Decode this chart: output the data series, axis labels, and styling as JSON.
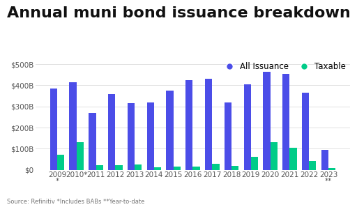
{
  "title": "Annual muni bond issuance breakdown",
  "years": [
    "2009\n*",
    "2010*",
    "2011",
    "2012",
    "2013",
    "2014",
    "2015",
    "2016",
    "2017",
    "2018",
    "2019",
    "2020",
    "2021",
    "2022",
    "2023\n**"
  ],
  "all_issuance": [
    385,
    415,
    270,
    360,
    315,
    320,
    375,
    425,
    430,
    320,
    405,
    465,
    455,
    365,
    95
  ],
  "taxable": [
    70,
    130,
    20,
    20,
    25,
    12,
    15,
    15,
    28,
    18,
    60,
    130,
    105,
    40,
    10
  ],
  "all_color": "#4b4de8",
  "taxable_color": "#00cc88",
  "background_color": "#ffffff",
  "ylabel_ticks": [
    0,
    100,
    200,
    300,
    400,
    500
  ],
  "ylabel_labels": [
    "$0",
    "$100B",
    "$200B",
    "$300B",
    "$400B",
    "$500B"
  ],
  "ylim": [
    0,
    530
  ],
  "legend_labels": [
    "All Issuance",
    "Taxable"
  ],
  "source_text": "Source: Refinitiv *Includes BABs **Year-to-date",
  "title_fontsize": 16,
  "axis_fontsize": 7.5,
  "legend_fontsize": 8.5
}
